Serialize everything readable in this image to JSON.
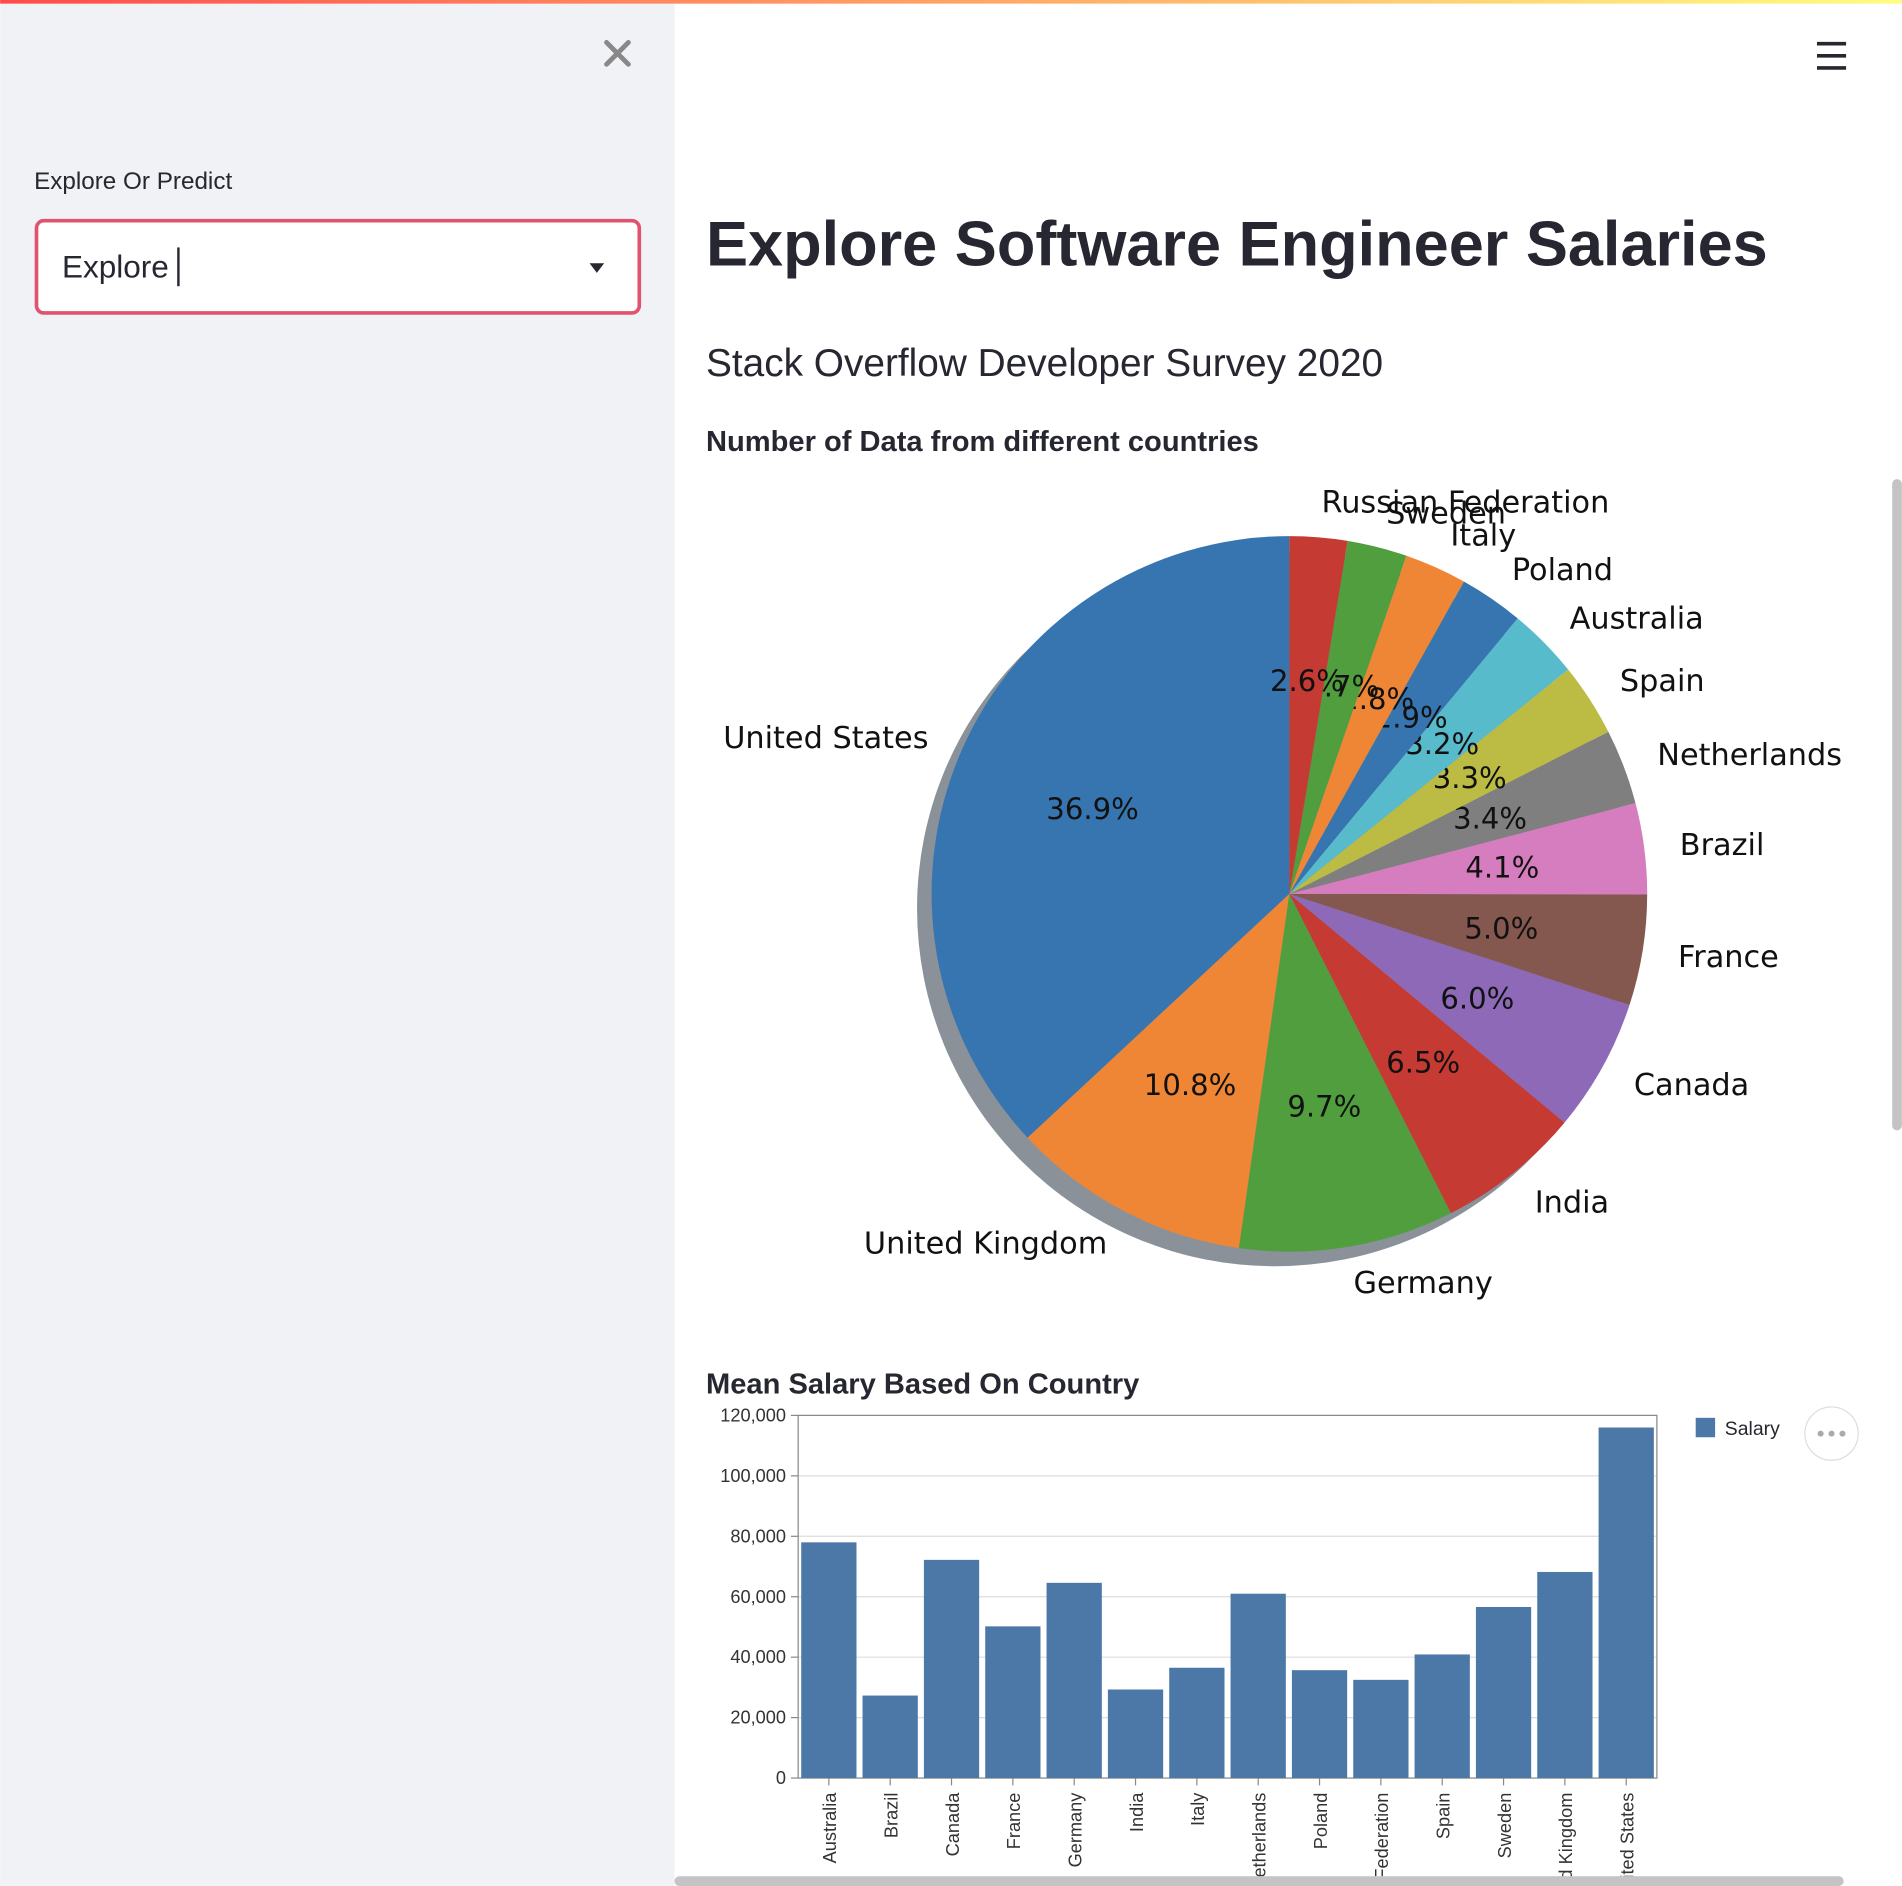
{
  "sidebar": {
    "label": "Explore Or Predict",
    "select_value": "Explore"
  },
  "title": "Explore Software Engineer Salaries",
  "subtitle": "Stack Overflow Developer Survey 2020",
  "chart_data": [
    {
      "type": "pie",
      "title": "Number of Data from different countries",
      "categories": [
        "United States",
        "United Kingdom",
        "Germany",
        "India",
        "Canada",
        "France",
        "Brazil",
        "Netherlands",
        "Spain",
        "Australia",
        "Poland",
        "Italy",
        "Sweden",
        "Russian Federation"
      ],
      "values": [
        36.9,
        10.8,
        9.7,
        6.5,
        6.0,
        5.0,
        4.1,
        3.4,
        3.3,
        3.2,
        2.9,
        2.8,
        2.7,
        2.6
      ],
      "value_labels": [
        "36.9%",
        "10.8%",
        "9.7%",
        "6.5%",
        "6.0%",
        "5.0%",
        "4.1%",
        "3.4%",
        "3.3%",
        "3.2%",
        "2.9%",
        "2.8%",
        "2.7%",
        "2.6%"
      ],
      "colors": [
        "#3775b0",
        "#ef8636",
        "#519e3e",
        "#c53a32",
        "#8d69b8",
        "#84584e",
        "#d57dbe",
        "#7f7f7f",
        "#bcbc45",
        "#58bbcc",
        "#3775b0",
        "#ef8636",
        "#519e3e",
        "#c53a32"
      ]
    },
    {
      "type": "bar",
      "title": "Mean Salary Based On Country",
      "categories": [
        "Australia",
        "Brazil",
        "Canada",
        "France",
        "Germany",
        "India",
        "Italy",
        "Netherlands",
        "Poland",
        "Russian Federation",
        "Spain",
        "Sweden",
        "United Kingdom",
        "United States"
      ],
      "series": [
        {
          "name": "Salary",
          "color": "#4c78a8",
          "values": [
            78000,
            27300,
            72200,
            50200,
            64600,
            29300,
            36500,
            61000,
            35700,
            32500,
            40900,
            56600,
            68200,
            116000
          ]
        }
      ],
      "ylim": [
        0,
        120000
      ],
      "yticks": [
        0,
        {
          "value": 20000,
          "label": "20,000"
        },
        {
          "value": 40000,
          "label": "40,000"
        },
        {
          "value": 60000,
          "label": "60,000"
        },
        {
          "value": 80000,
          "label": "80,000"
        },
        {
          "value": 100000,
          "label": "100,000"
        },
        {
          "value": 120000,
          "label": "120,000"
        }
      ],
      "grid": true,
      "legend": "top-right"
    }
  ]
}
